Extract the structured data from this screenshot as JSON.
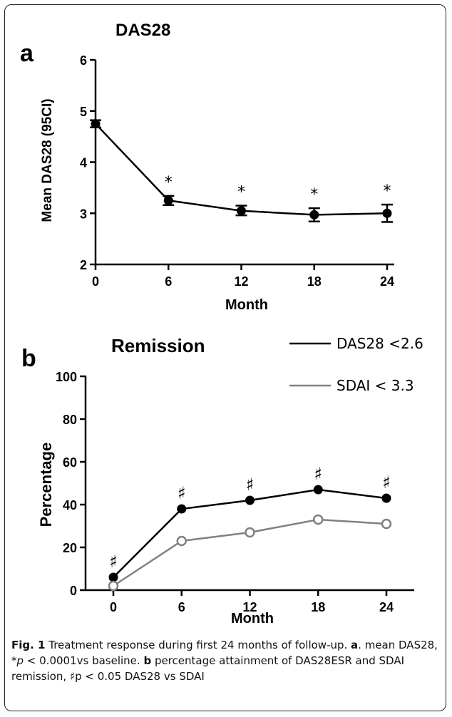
{
  "chart_data": [
    {
      "panel_label": "a",
      "type": "line",
      "title": "DAS28",
      "xlabel": "Month",
      "ylabel": "Mean DAS28 (95CI)",
      "xticks": [
        "0",
        "6",
        "12",
        "18",
        "24"
      ],
      "yticks": [
        "2",
        "3",
        "4",
        "5",
        "6"
      ],
      "xlim": [
        0,
        24
      ],
      "ylim": [
        2,
        6
      ],
      "grid": false,
      "series": [
        {
          "x": [
            0,
            6,
            12,
            18,
            24
          ],
          "y": [
            4.75,
            3.25,
            3.05,
            2.97,
            3.0
          ],
          "ci_low": [
            4.68,
            3.16,
            2.96,
            2.84,
            2.83
          ],
          "ci_high": [
            4.82,
            3.34,
            3.15,
            3.1,
            3.17
          ],
          "marker": "filled-circle",
          "color": "#000000"
        }
      ],
      "annotations": [
        {
          "x": 6,
          "text": "*"
        },
        {
          "x": 12,
          "text": "*"
        },
        {
          "x": 18,
          "text": "*"
        },
        {
          "x": 24,
          "text": "*"
        }
      ]
    },
    {
      "panel_label": "b",
      "type": "line",
      "title": "Remission",
      "xlabel": "Month",
      "ylabel": "Percentage",
      "xticks": [
        "0",
        "6",
        "12",
        "18",
        "24"
      ],
      "yticks": [
        "0",
        "20",
        "40",
        "60",
        "80",
        "100"
      ],
      "xlim": [
        0,
        24
      ],
      "ylim": [
        0,
        100
      ],
      "grid": false,
      "legend_position": "top-right",
      "series": [
        {
          "name": "DAS28 <2.6",
          "x": [
            0,
            6,
            12,
            18,
            24
          ],
          "y": [
            6,
            38,
            42,
            47,
            43
          ],
          "marker": "filled-circle",
          "color": "#000000"
        },
        {
          "name": "SDAI < 3.3",
          "x": [
            0,
            6,
            12,
            18,
            24
          ],
          "y": [
            2,
            23,
            27,
            33,
            31
          ],
          "marker": "open-circle",
          "color": "#808080"
        }
      ],
      "annotations": [
        {
          "x": 0,
          "text": "♯"
        },
        {
          "x": 6,
          "text": "♯"
        },
        {
          "x": 12,
          "text": "♯"
        },
        {
          "x": 18,
          "text": "♯"
        },
        {
          "x": 24,
          "text": "♯"
        }
      ]
    }
  ],
  "caption": {
    "fig_label": "Fig. 1",
    "text1": " Treatment response during first 24 months of follow-up. ",
    "a_label": "a",
    "text2": ". mean DAS28, *",
    "p_italic": "p",
    "text3": " < 0.0001vs baseline. ",
    "b_label": "b",
    "text4": " percentage attainment of DAS28ESR and SDAI remission, ♯p < 0.05 DAS28 vs SDAI"
  }
}
